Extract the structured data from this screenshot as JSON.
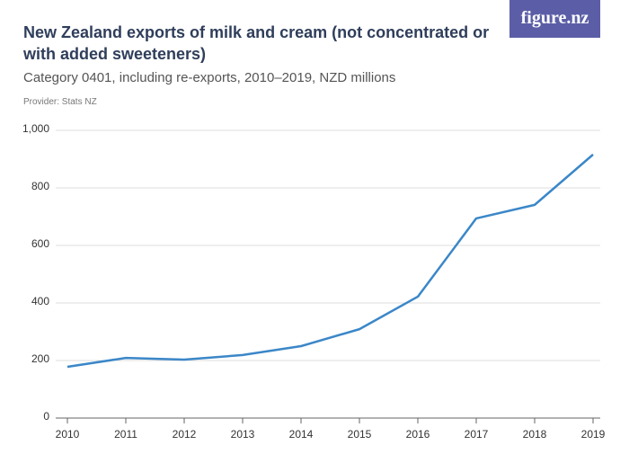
{
  "chart_data": {
    "type": "line",
    "title": "New Zealand exports of milk and cream (not concentrated or with added sweeteners)",
    "subtitle": "Category 0401, including re-exports, 2010–2019, NZD millions",
    "provider": "Provider: Stats NZ",
    "logo": "figure.nz",
    "x": [
      2010,
      2011,
      2012,
      2013,
      2014,
      2015,
      2016,
      2017,
      2018,
      2019
    ],
    "series": [
      {
        "color": "#3b87c8",
        "values": [
          178,
          209,
          203,
          219,
          250,
          309,
          422,
          694,
          741,
          916
        ]
      }
    ],
    "xlim": [
      2010,
      2019
    ],
    "xticks": [
      2010,
      2011,
      2012,
      2013,
      2014,
      2015,
      2016,
      2017,
      2018,
      2019
    ],
    "ylim": [
      0,
      1000
    ],
    "yticks": [
      0,
      200,
      400,
      600,
      800,
      {
        "value": 1000,
        "label": "1,000"
      }
    ],
    "grid": true
  }
}
